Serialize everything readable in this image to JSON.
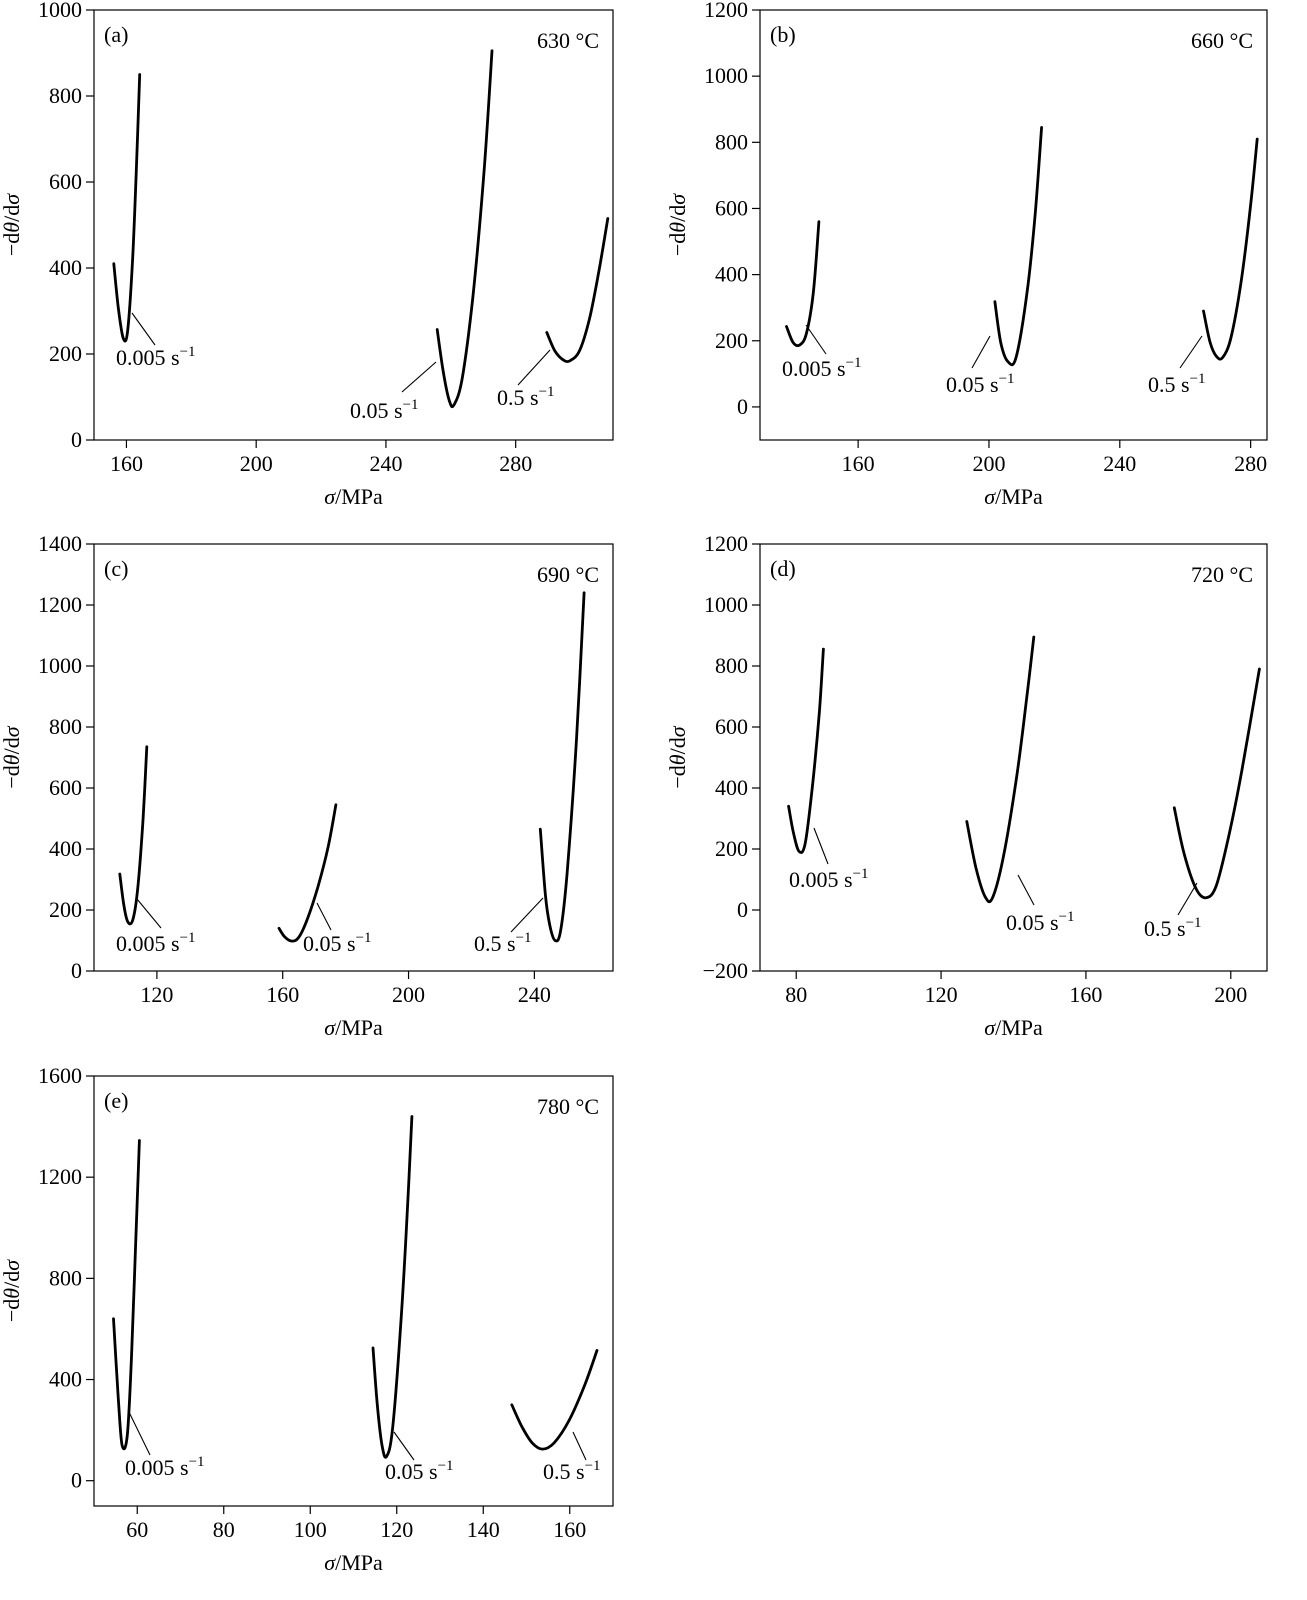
{
  "figure": {
    "y_axis_label": "−dθ/dσ",
    "x_axis_label": "σ/MPa"
  },
  "chart_data": [
    {
      "panel": "(a)",
      "type": "line",
      "annotation": "630 °C",
      "xlabel": "σ/MPa",
      "ylabel": "−dθ/dσ",
      "xlim": [
        150,
        310
      ],
      "ylim": [
        0,
        1000
      ],
      "xticks": [
        160,
        200,
        240,
        280
      ],
      "yticks": [
        0,
        200,
        400,
        600,
        800,
        1000
      ],
      "series": [
        {
          "name": "0.005 s⁻¹",
          "x": [
            156.1,
            157.6,
            159.1,
            160.4,
            161.9,
            163.0,
            164.1
          ],
          "y": [
            410,
            300,
            235,
            255,
            420,
            620,
            850
          ]
        },
        {
          "name": "0.05 s⁻¹",
          "x": [
            255.8,
            257.7,
            259.6,
            261.0,
            263.5,
            266.8,
            270.2,
            272.7
          ],
          "y": [
            257,
            157,
            90,
            82,
            143,
            333,
            620,
            905
          ]
        },
        {
          "name": "0.5 s⁻¹",
          "x": [
            289.6,
            292.1,
            294.9,
            296.9,
            299.7,
            302.7,
            305.6,
            308.4
          ],
          "y": [
            250,
            207,
            185,
            185,
            208,
            280,
            390,
            515
          ]
        }
      ]
    },
    {
      "panel": "(b)",
      "type": "line",
      "annotation": "660 °C",
      "xlabel": "σ/MPa",
      "ylabel": "−dθ/dσ",
      "xlim": [
        130,
        285
      ],
      "ylim": [
        -100,
        1200
      ],
      "xticks": [
        160,
        200,
        240,
        280
      ],
      "yticks": [
        0,
        200,
        400,
        600,
        800,
        1000,
        1200
      ],
      "series": [
        {
          "name": "0.005 s⁻¹",
          "x": [
            138.1,
            140.1,
            142.1,
            144.2,
            146.3,
            148.0
          ],
          "y": [
            243,
            195,
            187,
            222,
            345,
            560
          ]
        },
        {
          "name": "0.05 s⁻¹",
          "x": [
            201.8,
            203.6,
            205.8,
            208.3,
            211.7,
            214.1,
            216.1
          ],
          "y": [
            318,
            195,
            137,
            150,
            350,
            580,
            845
          ]
        },
        {
          "name": "0.5 s⁻¹",
          "x": [
            265.6,
            267.6,
            269.6,
            271.5,
            274.0,
            277.1,
            280.0,
            282.0
          ],
          "y": [
            290,
            195,
            152,
            150,
            210,
            380,
            610,
            810
          ]
        }
      ]
    },
    {
      "panel": "(c)",
      "type": "line",
      "annotation": "690 °C",
      "xlabel": "σ/MPa",
      "ylabel": "−dθ/dσ",
      "xlim": [
        100,
        265
      ],
      "ylim": [
        0,
        1400
      ],
      "xticks": [
        120,
        160,
        200,
        240
      ],
      "yticks": [
        0,
        200,
        400,
        600,
        800,
        1000,
        1200,
        1400
      ],
      "series": [
        {
          "name": "0.005 s⁻¹",
          "x": [
            108.2,
            109.5,
            110.8,
            112.4,
            114.0,
            115.6,
            116.8
          ],
          "y": [
            318,
            215,
            160,
            170,
            280,
            500,
            735
          ]
        },
        {
          "name": "0.05 s⁻¹",
          "x": [
            158.8,
            160.6,
            162.9,
            165.2,
            168.0,
            171.3,
            174.4,
            176.9
          ],
          "y": [
            140,
            112,
            98,
            112,
            175,
            280,
            405,
            545
          ]
        },
        {
          "name": "0.5 s⁻¹",
          "x": [
            241.9,
            243.5,
            244.9,
            246.6,
            248.3,
            250.4,
            253.4,
            255.8
          ],
          "y": [
            465,
            250,
            150,
            100,
            130,
            320,
            760,
            1240
          ]
        }
      ]
    },
    {
      "panel": "(d)",
      "type": "line",
      "annotation": "720 °C",
      "xlabel": "σ/MPa",
      "ylabel": "−dθ/dσ",
      "xlim": [
        70,
        210
      ],
      "ylim": [
        -200,
        1200
      ],
      "xticks": [
        80,
        120,
        160,
        200
      ],
      "yticks": [
        -200,
        0,
        200,
        400,
        600,
        800,
        1000,
        1200
      ],
      "series": [
        {
          "name": "0.005 s⁻¹",
          "x": [
            77.9,
            79.2,
            80.8,
            82.5,
            84.6,
            86.4,
            87.5
          ],
          "y": [
            340,
            255,
            192,
            220,
            420,
            650,
            855
          ]
        },
        {
          "name": "0.05 s⁻¹",
          "x": [
            127.1,
            129.6,
            132.1,
            134.2,
            137.3,
            140.9,
            143.6,
            145.6
          ],
          "y": [
            290,
            140,
            45,
            40,
            180,
            440,
            690,
            895
          ]
        },
        {
          "name": "0.5 s⁻¹",
          "x": [
            184.4,
            187.1,
            190.4,
            193.2,
            196.0,
            199.4,
            203.1,
            207.9
          ],
          "y": [
            335,
            185,
            70,
            40,
            80,
            240,
            460,
            790
          ]
        }
      ]
    },
    {
      "panel": "(e)",
      "type": "line",
      "annotation": "780 °C",
      "xlabel": "σ/MPa",
      "ylabel": "−dθ/dσ",
      "xlim": [
        50,
        170
      ],
      "ylim": [
        -100,
        1600
      ],
      "xticks": [
        60,
        80,
        100,
        120,
        140,
        160
      ],
      "yticks": [
        0,
        400,
        800,
        1200,
        1600
      ],
      "series": [
        {
          "name": "0.005 s⁻¹",
          "x": [
            54.5,
            55.6,
            56.5,
            57.7,
            58.7,
            59.6,
            60.5
          ],
          "y": [
            640,
            330,
            140,
            180,
            500,
            920,
            1345
          ]
        },
        {
          "name": "0.05 s⁻¹",
          "x": [
            114.5,
            115.5,
            116.6,
            117.6,
            119.0,
            120.9,
            122.4,
            123.5
          ],
          "y": [
            525,
            300,
            140,
            95,
            200,
            610,
            1050,
            1440
          ]
        },
        {
          "name": "0.5 s⁻¹",
          "x": [
            146.6,
            148.9,
            151.3,
            153.7,
            156.4,
            159.9,
            163.5,
            166.3
          ],
          "y": [
            300,
            215,
            150,
            125,
            150,
            240,
            380,
            515
          ]
        }
      ]
    }
  ]
}
